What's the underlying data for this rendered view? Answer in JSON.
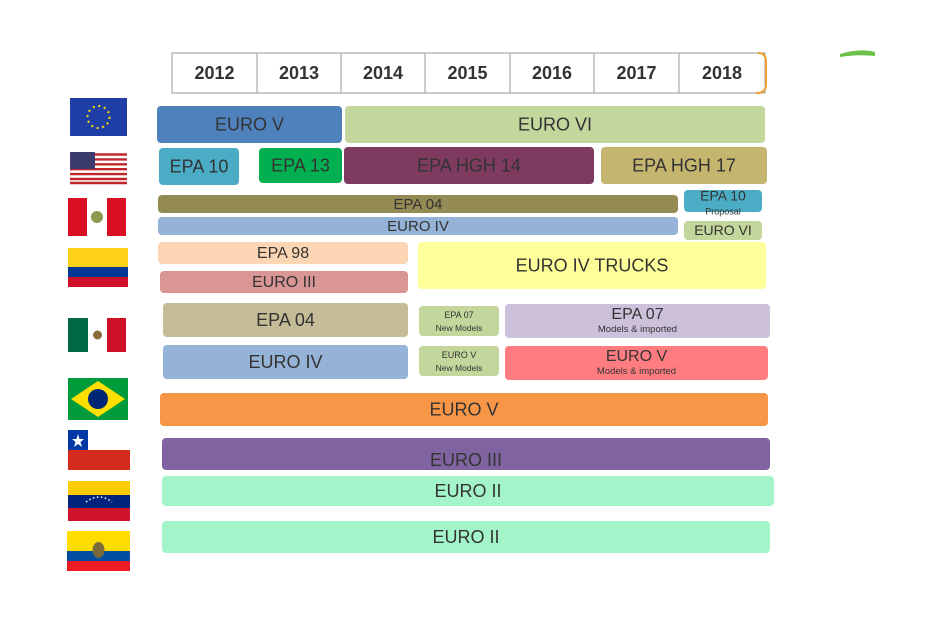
{
  "header": {
    "years": [
      "2012",
      "2013",
      "2014",
      "2015",
      "2016",
      "2017",
      "2018"
    ]
  },
  "rows": [
    {
      "bars": [
        {
          "label": "EURO V"
        },
        {
          "label": "EURO VI"
        }
      ]
    },
    {
      "bars": [
        {
          "label": "EPA 10"
        },
        {
          "label": "EPA 13"
        },
        {
          "label": "EPA HGH 14"
        },
        {
          "label": "EPA HGH 17"
        }
      ]
    },
    {
      "bars": [
        {
          "label": "EPA  04"
        },
        {
          "label": "EURO IV"
        },
        {
          "label": "EPA 10",
          "sub": "Proposal"
        },
        {
          "label": "EURO VI"
        }
      ]
    },
    {
      "bars": [
        {
          "label": "EPA  98"
        },
        {
          "label": "EURO III"
        },
        {
          "label": "EURO IV TRUCKS"
        }
      ]
    },
    {
      "bars": [
        {
          "label": "EPA 04"
        },
        {
          "label": "EPA 07",
          "sub": "New Models"
        },
        {
          "label": "EPA  07",
          "sub": "Models & imported"
        },
        {
          "label": "EURO IV"
        },
        {
          "label": "EURO V",
          "sub": "New Models"
        },
        {
          "label": "EURO V",
          "sub": "Models & imported"
        }
      ]
    },
    {
      "bars": [
        {
          "label": "EURO V"
        }
      ]
    },
    {
      "bars": [
        {
          "label": "EURO III"
        }
      ]
    },
    {
      "bars": [
        {
          "label": "EURO II"
        }
      ]
    },
    {
      "bars": [
        {
          "label": "EURO II"
        }
      ]
    }
  ]
}
